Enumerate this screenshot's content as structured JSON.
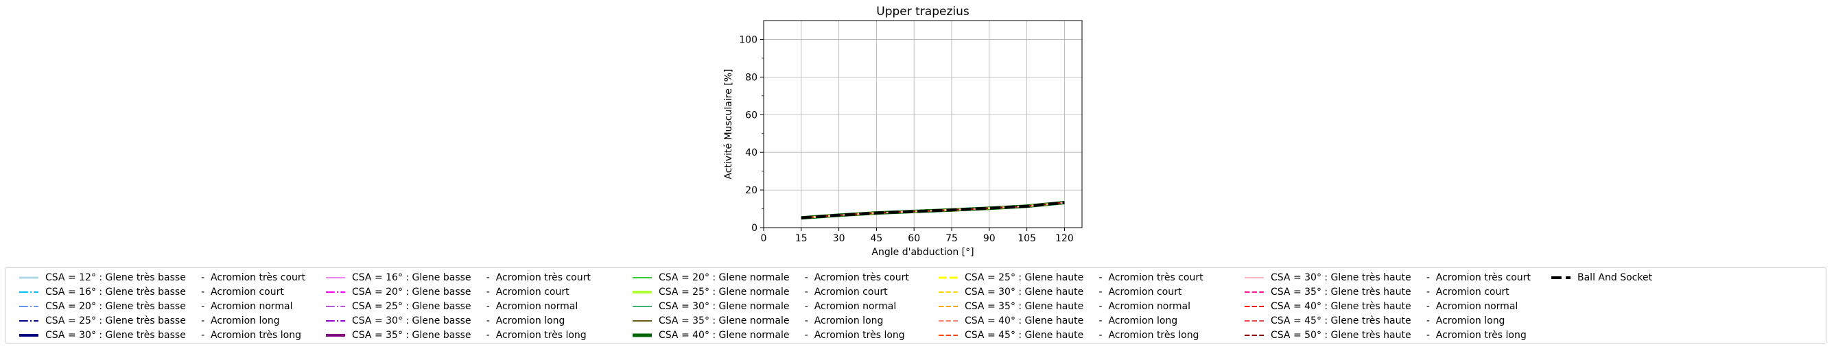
{
  "chart_data": {
    "type": "line",
    "title": "Upper trapezius",
    "xlabel": "Angle d'abduction [°]",
    "ylabel": "Activité Musculaire [%]",
    "xlim": [
      0,
      127
    ],
    "ylim": [
      0,
      110
    ],
    "xticks": [
      0,
      15,
      30,
      45,
      60,
      75,
      90,
      105,
      120
    ],
    "yticks": [
      0,
      20,
      40,
      60,
      80,
      100
    ],
    "grid": true,
    "legend_placement": "below",
    "x": [
      15,
      30,
      45,
      60,
      75,
      90,
      105,
      120
    ],
    "series": [
      {
        "name": "CSA = 12° : Glene très basse     -  Acromion très court",
        "color": "#add8e6",
        "dash": "solid",
        "width": 3,
        "values": [
          5.2,
          6.6,
          7.8,
          8.6,
          9.4,
          10.3,
          11.4,
          13.3
        ]
      },
      {
        "name": "CSA = 16° : Glene très basse     -  Acromion court",
        "color": "#00bfff",
        "dash": "dashdot",
        "width": 2,
        "values": [
          5.2,
          6.6,
          7.8,
          8.6,
          9.4,
          10.3,
          11.4,
          13.3
        ]
      },
      {
        "name": "CSA = 20° : Glene très basse     -  Acromion normal",
        "color": "#6495ed",
        "dash": "dashdot",
        "width": 2,
        "values": [
          5.2,
          6.6,
          7.8,
          8.6,
          9.4,
          10.3,
          11.4,
          13.3
        ]
      },
      {
        "name": "CSA = 25° : Glene très basse     -  Acromion long",
        "color": "#00008b",
        "dash": "dashdot",
        "width": 2,
        "values": [
          5.2,
          6.6,
          7.8,
          8.6,
          9.4,
          10.3,
          11.4,
          13.3
        ]
      },
      {
        "name": "CSA = 30° : Glene très basse     -  Acromion très long",
        "color": "#000080",
        "dash": "solid",
        "width": 4,
        "values": [
          5.2,
          6.6,
          7.8,
          8.6,
          9.4,
          10.3,
          11.4,
          13.3
        ]
      },
      {
        "name": "CSA = 16° : Glene basse     -  Acromion très court",
        "color": "#ee82ee",
        "dash": "solid",
        "width": 2,
        "values": [
          5.2,
          6.6,
          7.8,
          8.6,
          9.4,
          10.3,
          11.4,
          13.3
        ]
      },
      {
        "name": "CSA = 20° : Glene basse     -  Acromion court",
        "color": "#ff00ff",
        "dash": "dashdot",
        "width": 2,
        "values": [
          5.2,
          6.6,
          7.8,
          8.6,
          9.4,
          10.3,
          11.4,
          13.3
        ]
      },
      {
        "name": "CSA = 25° : Glene basse     -  Acromion normal",
        "color": "#ba55d3",
        "dash": "dashdot",
        "width": 2,
        "values": [
          5.2,
          6.6,
          7.8,
          8.6,
          9.4,
          10.3,
          11.4,
          13.3
        ]
      },
      {
        "name": "CSA = 30° : Glene basse     -  Acromion long",
        "color": "#9400d3",
        "dash": "dashdot",
        "width": 2,
        "values": [
          5.2,
          6.6,
          7.8,
          8.6,
          9.4,
          10.3,
          11.4,
          13.3
        ]
      },
      {
        "name": "CSA = 35° : Glene basse     -  Acromion très long",
        "color": "#800080",
        "dash": "solid",
        "width": 4,
        "values": [
          5.2,
          6.6,
          7.8,
          8.6,
          9.4,
          10.3,
          11.4,
          13.3
        ]
      },
      {
        "name": "CSA = 20° : Glene normale     -  Acromion très court",
        "color": "#32cd32",
        "dash": "solid",
        "width": 2,
        "values": [
          5.2,
          6.6,
          7.8,
          8.6,
          9.4,
          10.3,
          11.4,
          13.3
        ]
      },
      {
        "name": "CSA = 25° : Glene normale     -  Acromion court",
        "color": "#adff2f",
        "dash": "solid",
        "width": 4,
        "values": [
          5.2,
          6.6,
          7.8,
          8.6,
          9.4,
          10.3,
          11.4,
          13.3
        ]
      },
      {
        "name": "CSA = 30° : Glene normale     -  Acromion normal",
        "color": "#3cb371",
        "dash": "solid",
        "width": 2,
        "values": [
          5.2,
          6.6,
          7.8,
          8.6,
          9.4,
          10.3,
          11.4,
          13.3
        ]
      },
      {
        "name": "CSA = 35° : Glene normale     -  Acromion long",
        "color": "#6b5a1e",
        "dash": "solid",
        "width": 2,
        "values": [
          5.2,
          6.6,
          7.8,
          8.6,
          9.4,
          10.3,
          11.4,
          13.3
        ]
      },
      {
        "name": "CSA = 40° : Glene normale     -  Acromion très long",
        "color": "#006400",
        "dash": "solid",
        "width": 5,
        "values": [
          5.2,
          6.6,
          7.8,
          8.6,
          9.4,
          10.3,
          11.4,
          13.3
        ]
      },
      {
        "name": "CSA = 25° : Glene haute     -  Acromion très court",
        "color": "#ffff00",
        "dash": "dashed",
        "width": 3,
        "values": [
          5.2,
          6.6,
          7.8,
          8.6,
          9.4,
          10.3,
          11.4,
          13.3
        ]
      },
      {
        "name": "CSA = 30° : Glene haute     -  Acromion court",
        "color": "#ffd700",
        "dash": "dashed",
        "width": 2,
        "values": [
          5.2,
          6.6,
          7.8,
          8.6,
          9.4,
          10.3,
          11.4,
          13.3
        ]
      },
      {
        "name": "CSA = 35° : Glene haute     -  Acromion normal",
        "color": "#ffa500",
        "dash": "dashed",
        "width": 2,
        "values": [
          5.2,
          6.6,
          7.8,
          8.6,
          9.4,
          10.3,
          11.4,
          13.3
        ]
      },
      {
        "name": "CSA = 40° : Glene haute     -  Acromion long",
        "color": "#fa8072",
        "dash": "dashed",
        "width": 2,
        "values": [
          5.2,
          6.6,
          7.8,
          8.6,
          9.4,
          10.3,
          11.4,
          13.3
        ]
      },
      {
        "name": "CSA = 45° : Glene haute     -  Acromion très long",
        "color": "#ff4500",
        "dash": "dashed",
        "width": 2,
        "values": [
          5.2,
          6.6,
          7.8,
          8.6,
          9.4,
          10.3,
          11.4,
          13.3
        ]
      },
      {
        "name": "CSA = 30° : Glene très haute     -  Acromion très court",
        "color": "#ffb6c1",
        "dash": "solid",
        "width": 2,
        "values": [
          5.2,
          6.6,
          7.8,
          8.6,
          9.4,
          10.3,
          11.4,
          13.3
        ]
      },
      {
        "name": "CSA = 35° : Glene très haute     -  Acromion court",
        "color": "#ff1493",
        "dash": "dashed",
        "width": 2,
        "values": [
          5.2,
          6.6,
          7.8,
          8.6,
          9.4,
          10.3,
          11.4,
          13.3
        ]
      },
      {
        "name": "CSA = 40° : Glene très haute     -  Acromion normal",
        "color": "#ff0000",
        "dash": "dashed",
        "width": 2,
        "values": [
          5.2,
          6.6,
          7.8,
          8.6,
          9.4,
          10.3,
          11.4,
          13.3
        ]
      },
      {
        "name": "CSA = 45° : Glene très haute     -  Acromion long",
        "color": "#e8484c",
        "dash": "dashed",
        "width": 2,
        "values": [
          5.2,
          6.6,
          7.8,
          8.6,
          9.4,
          10.3,
          11.4,
          13.3
        ]
      },
      {
        "name": "CSA = 50° : Glene très haute     -  Acromion très long",
        "color": "#8b0000",
        "dash": "dashed",
        "width": 2,
        "values": [
          5.2,
          6.6,
          7.8,
          8.6,
          9.4,
          10.3,
          11.4,
          13.3
        ]
      },
      {
        "name": "Ball And Socket",
        "color": "#000000",
        "dash": "dashed",
        "width": 4,
        "values": [
          5.2,
          6.6,
          7.8,
          8.6,
          9.4,
          10.3,
          11.4,
          13.3
        ]
      }
    ]
  }
}
